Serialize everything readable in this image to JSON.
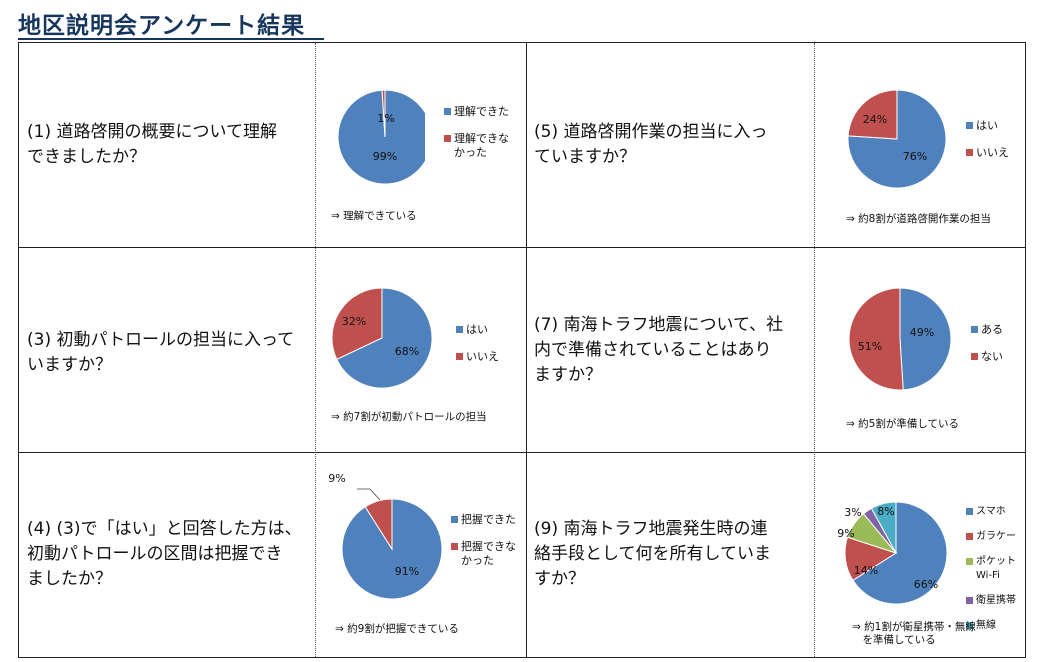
{
  "page": {
    "title": "地区説明会アンケート結果"
  },
  "colors": {
    "blue": "#4f81bd",
    "red": "#c0504d",
    "green": "#9bbb59",
    "purple": "#8064a2",
    "aqua": "#4bacc6"
  },
  "questions": [
    {
      "id": "q1",
      "text": "(1) 道路啓開の概要について理解\nできましたか？",
      "note": "⇒ 理解できている",
      "chart_data": {
        "type": "pie",
        "categories": [
          "理解できた",
          "理解できな\nかった"
        ],
        "values": [
          99,
          1
        ],
        "labels": [
          "99%",
          "1%"
        ],
        "colors": [
          "#4f81bd",
          "#c0504d"
        ],
        "legend": "right"
      }
    },
    {
      "id": "q5",
      "text": "(5) 道路啓開作業の担当に入っ\nていますか？",
      "note": "⇒ 約8割が道路啓開作業の担当",
      "chart_data": {
        "type": "pie",
        "categories": [
          "はい",
          "いいえ"
        ],
        "values": [
          76,
          24
        ],
        "labels": [
          "76%",
          "24%"
        ],
        "colors": [
          "#4f81bd",
          "#c0504d"
        ],
        "legend": "right"
      }
    },
    {
      "id": "q3",
      "text": "(3) 初動パトロールの担当に入って\nいますか？",
      "note": "⇒ 約7割が初動パトロールの担当",
      "chart_data": {
        "type": "pie",
        "categories": [
          "はい",
          "いいえ"
        ],
        "values": [
          68,
          32
        ],
        "labels": [
          "68%",
          "32%"
        ],
        "colors": [
          "#4f81bd",
          "#c0504d"
        ],
        "legend": "right"
      }
    },
    {
      "id": "q7",
      "text": "(7) 南海トラフ地震について、社\n内で準備されていることはあり\nますか？",
      "note": "⇒ 約5割が準備している",
      "chart_data": {
        "type": "pie",
        "categories": [
          "ある",
          "ない"
        ],
        "values": [
          49,
          51
        ],
        "labels": [
          "49%",
          "51%"
        ],
        "colors": [
          "#4f81bd",
          "#c0504d"
        ],
        "legend": "right"
      }
    },
    {
      "id": "q4",
      "text": "(4) (3)で「はい」と回答した方は、\n初動パトロールの区間は把握でき\nましたか？",
      "note": "⇒ 約9割が把握できている",
      "chart_data": {
        "type": "pie",
        "categories": [
          "把握できた",
          "把握できな\nかった"
        ],
        "values": [
          91,
          9
        ],
        "labels": [
          "91%",
          "9%"
        ],
        "colors": [
          "#4f81bd",
          "#c0504d"
        ],
        "legend": "right"
      }
    },
    {
      "id": "q9",
      "text": "(9) 南海トラフ地震発生時の連\n絡手段として何を所有していま\nすか？",
      "note": "⇒ 約1割が衛星携帯・無線\n　を準備している",
      "chart_data": {
        "type": "pie",
        "categories": [
          "スマホ",
          "ガラケー",
          "ポケットWi-Fi",
          "衛星携帯",
          "無線"
        ],
        "values": [
          66,
          14,
          9,
          3,
          8
        ],
        "labels": [
          "66%",
          "14%",
          "9%",
          "3%",
          "8%"
        ],
        "colors": [
          "#4f81bd",
          "#c0504d",
          "#9bbb59",
          "#8064a2",
          "#4bacc6"
        ],
        "legend": "right"
      }
    }
  ]
}
